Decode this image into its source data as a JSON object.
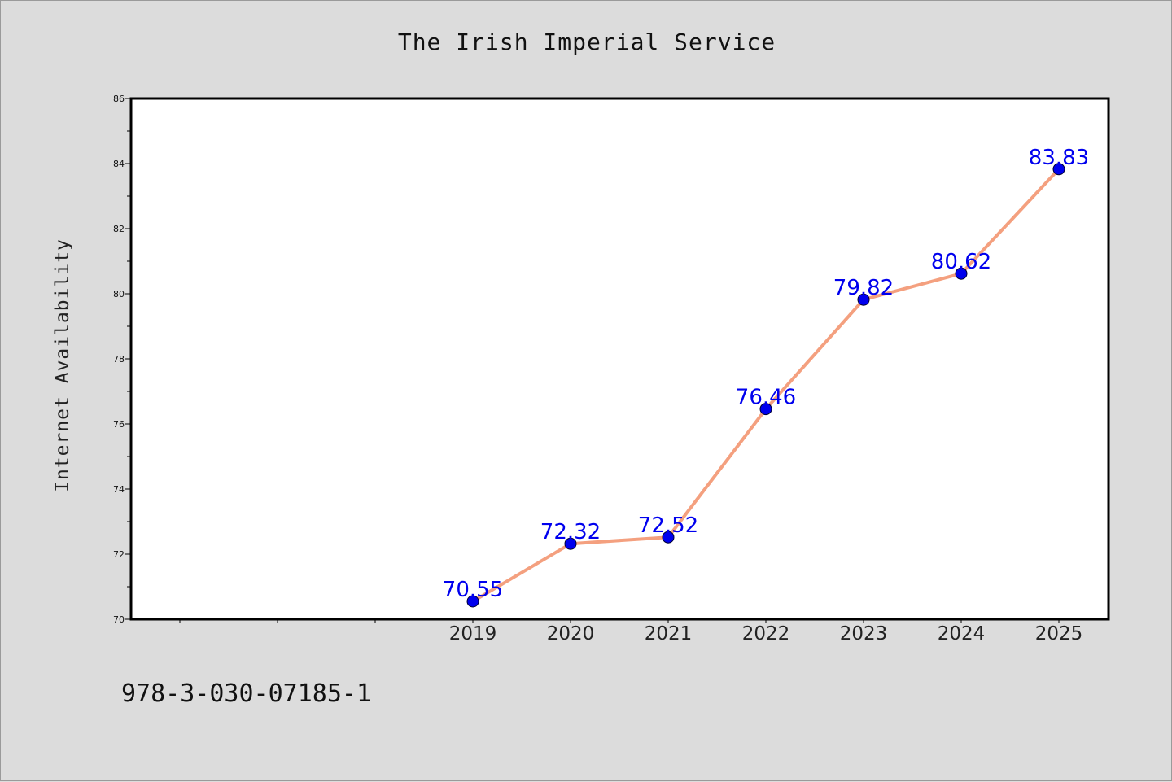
{
  "chart_data": {
    "type": "line",
    "title": "The Irish Imperial Service",
    "xlabel": "",
    "ylabel": "Internet Availability",
    "categories": [
      "",
      "",
      "",
      "2019",
      "2020",
      "2021",
      "2022",
      "2023",
      "2024",
      "2025"
    ],
    "series": [
      {
        "x": [
          "2019",
          "2020",
          "2021",
          "2022",
          "2023",
          "2024",
          "2025"
        ],
        "values": [
          70.55,
          72.32,
          72.52,
          76.46,
          79.82,
          80.62,
          83.83
        ],
        "labels": [
          "70.55",
          "72.32",
          "72.52",
          "76.46",
          "79.82",
          "80.62",
          "83.83"
        ],
        "line_color": "#f4a07f",
        "marker_color": "#0000ee"
      }
    ],
    "ylim": [
      70,
      86
    ],
    "yticks": [
      "70",
      "72",
      "74",
      "76",
      "78",
      "80",
      "82",
      "84",
      "86"
    ],
    "grid": false,
    "legend": "none"
  },
  "footer": {
    "isbn": "978-3-030-07185-1"
  },
  "colors": {
    "background": "#dcdcdc",
    "plot_area": "#ffffff",
    "line": "#f4a07f",
    "marker": "#0000ee",
    "data_label": "#0000ee"
  }
}
